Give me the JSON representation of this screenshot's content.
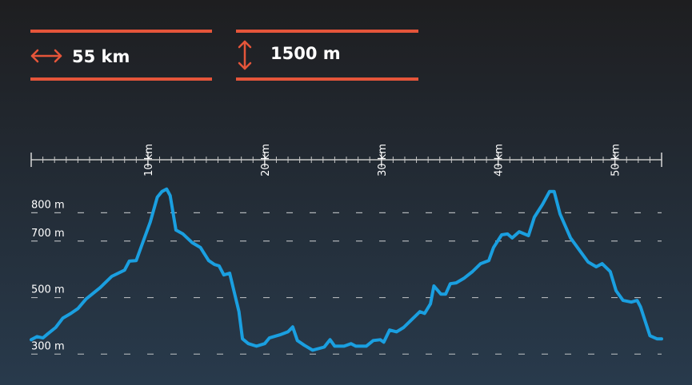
{
  "header": {
    "distance": "55 km",
    "ascent": "1500 m"
  },
  "chart_data": {
    "type": "line",
    "xlim": [
      0,
      54
    ],
    "ylim": [
      250,
      900
    ],
    "xticks": [
      {
        "value": 10,
        "label": "10 km"
      },
      {
        "value": 20,
        "label": "20 km"
      },
      {
        "value": 30,
        "label": "30 km"
      },
      {
        "value": 40,
        "label": "40 km"
      },
      {
        "value": 50,
        "label": "50 km"
      }
    ],
    "xminorticks": [
      0,
      1,
      2,
      3,
      4,
      5,
      6,
      7,
      8,
      9,
      10,
      11,
      12,
      13,
      14,
      15,
      16,
      17,
      18,
      19,
      20,
      21,
      22,
      23,
      24,
      25,
      26,
      27,
      28,
      29,
      30,
      31,
      32,
      33,
      34,
      35,
      36,
      37,
      38,
      39,
      40,
      41,
      42,
      43,
      44,
      45,
      46,
      47,
      48,
      49,
      50,
      51,
      52,
      53,
      54
    ],
    "yticks": [
      {
        "value": 300,
        "label": "300 m"
      },
      {
        "value": 500,
        "label": "500 m"
      },
      {
        "value": 700,
        "label": "700 m"
      },
      {
        "value": 800,
        "label": "800 m"
      }
    ],
    "grid": true,
    "color": "#1a9fe0",
    "x": [
      0,
      0.5,
      1.0,
      1.4,
      2.1,
      2.7,
      3.4,
      4.0,
      4.7,
      5.9,
      6.9,
      8.0,
      8.4,
      9.0,
      9.5,
      10.2,
      10.8,
      11.2,
      11.6,
      11.9,
      12.4,
      13.0,
      13.8,
      14.5,
      15.2,
      15.7,
      16.1,
      16.5,
      17.0,
      17.4,
      17.8,
      18.1,
      18.6,
      19.3,
      20.0,
      20.4,
      21.3,
      22.0,
      22.4,
      22.8,
      23.4,
      24.1,
      25.1,
      25.6,
      26.0,
      26.8,
      27.4,
      27.8,
      28.7,
      29.3,
      29.9,
      30.2,
      30.7,
      31.3,
      31.9,
      32.6,
      33.3,
      33.7,
      34.2,
      34.5,
      35.1,
      35.5,
      35.9,
      36.4,
      37.1,
      37.8,
      38.5,
      39.2,
      39.6,
      40.3,
      40.8,
      41.2,
      41.8,
      42.6,
      43.1,
      43.8,
      44.4,
      44.8,
      45.3,
      46.2,
      47.1,
      47.7,
      48.4,
      48.9,
      49.6,
      50.1,
      50.7,
      51.4,
      51.9,
      52.2,
      53.0,
      53.6,
      54.0
    ],
    "values": [
      351,
      362,
      357,
      371,
      394,
      427,
      444,
      461,
      495,
      535,
      575,
      597,
      629,
      631,
      688,
      767,
      855,
      875,
      884,
      861,
      739,
      725,
      694,
      677,
      631,
      617,
      612,
      580,
      586,
      518,
      450,
      354,
      337,
      328,
      337,
      357,
      368,
      379,
      396,
      348,
      331,
      314,
      325,
      351,
      328,
      328,
      337,
      328,
      328,
      348,
      351,
      342,
      385,
      379,
      394,
      422,
      450,
      444,
      478,
      541,
      512,
      512,
      549,
      552,
      569,
      592,
      620,
      631,
      677,
      722,
      725,
      711,
      733,
      719,
      784,
      830,
      875,
      875,
      796,
      711,
      660,
      626,
      609,
      620,
      592,
      524,
      490,
      484,
      490,
      467,
      365,
      354,
      354
    ]
  }
}
